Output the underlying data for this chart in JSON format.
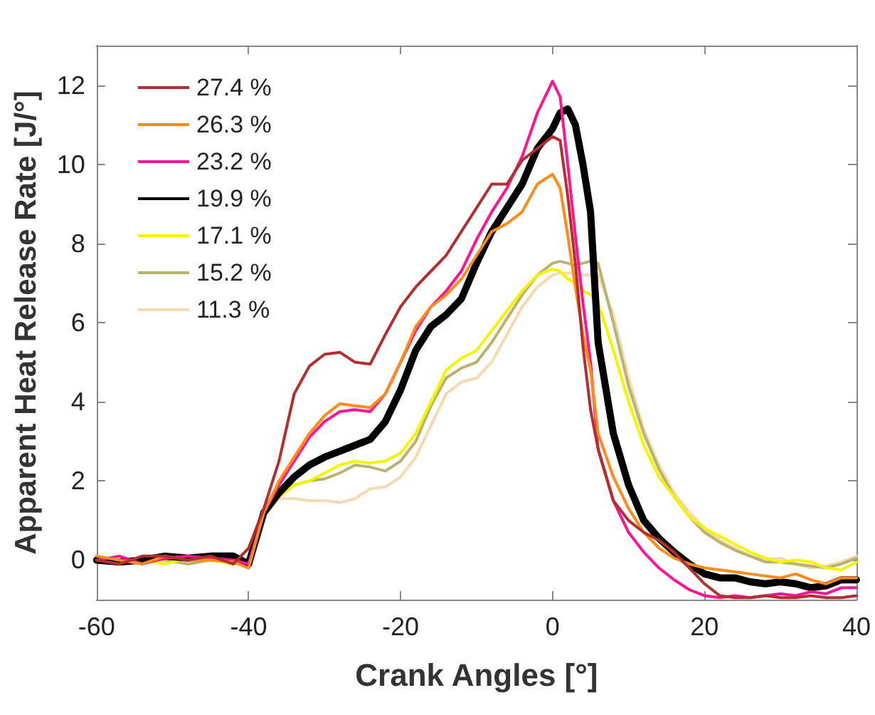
{
  "chart_data": {
    "type": "line",
    "xlabel": "Crank Angles [°]",
    "ylabel": "Apparent Heat Release Rate [J/°]",
    "x": [
      -60,
      -57,
      -54,
      -51,
      -48,
      -45,
      -42,
      -40,
      -38,
      -36,
      -34,
      -32,
      -30,
      -28,
      -26,
      -24,
      -22,
      -20,
      -18,
      -16,
      -14,
      -12,
      -10,
      -8,
      -6,
      -4,
      -2,
      0,
      1,
      2,
      3,
      4,
      5,
      6,
      8,
      10,
      12,
      14,
      16,
      18,
      20,
      22,
      24,
      26,
      28,
      30,
      32,
      34,
      36,
      38,
      40
    ],
    "series": [
      {
        "name": "27.4 %",
        "color": "#b22f2f",
        "values": [
          0,
          -0.1,
          0.1,
          0.1,
          0,
          0.1,
          -0.1,
          0.3,
          1.3,
          2.5,
          4.2,
          4.9,
          5.2,
          5.25,
          5.0,
          4.95,
          5.7,
          6.4,
          6.9,
          7.3,
          7.7,
          8.3,
          8.9,
          9.5,
          9.5,
          10.1,
          10.4,
          10.7,
          10.6,
          9.2,
          7.5,
          5.4,
          3.8,
          2.8,
          1.5,
          1.0,
          0.7,
          0.5,
          0.2,
          -0.2,
          -0.6,
          -0.9,
          -0.95,
          -0.95,
          -0.9,
          -0.95,
          -0.95,
          -0.9,
          -0.95,
          -0.95,
          -0.9
        ]
      },
      {
        "name": "26.3 %",
        "color": "#ff8c1a",
        "values": [
          0.1,
          0,
          -0.1,
          0.1,
          0,
          0,
          -0.05,
          -0.2,
          1.2,
          2.0,
          2.6,
          3.2,
          3.65,
          3.95,
          3.9,
          3.85,
          4.2,
          5.0,
          5.9,
          6.4,
          6.7,
          7.1,
          7.7,
          8.3,
          8.5,
          8.8,
          9.5,
          9.75,
          9.4,
          8.2,
          6.9,
          5.7,
          4.8,
          3.2,
          2.1,
          1.3,
          0.7,
          0.3,
          0.05,
          -0.1,
          -0.2,
          -0.25,
          -0.3,
          -0.35,
          -0.4,
          -0.45,
          -0.35,
          -0.5,
          -0.6,
          -0.45,
          -0.45
        ]
      },
      {
        "name": "23.2 %",
        "color": "#ff1493",
        "values": [
          0,
          0.1,
          -0.1,
          0.05,
          0.1,
          0.05,
          0,
          -0.1,
          1.2,
          1.9,
          2.5,
          3.1,
          3.5,
          3.75,
          3.8,
          3.75,
          4.2,
          5.0,
          5.8,
          6.4,
          6.8,
          7.3,
          8.1,
          8.8,
          9.4,
          10.2,
          11.3,
          12.1,
          11.7,
          10,
          8.2,
          6.5,
          5.0,
          2.8,
          1.5,
          0.7,
          0.2,
          -0.2,
          -0.5,
          -0.75,
          -0.9,
          -0.95,
          -0.9,
          -0.95,
          -0.9,
          -0.85,
          -0.9,
          -0.8,
          -0.85,
          -0.7,
          -0.7
        ]
      },
      {
        "name": "19.9 %",
        "color": "#000000",
        "values": [
          0,
          -0.05,
          0,
          0.1,
          0.05,
          0.1,
          0.1,
          -0.1,
          1.2,
          1.7,
          2.1,
          2.4,
          2.6,
          2.75,
          2.9,
          3.05,
          3.5,
          4.3,
          5.3,
          5.9,
          6.2,
          6.6,
          7.5,
          8.3,
          8.9,
          9.5,
          10.4,
          10.9,
          11.3,
          11.4,
          11.0,
          10.0,
          8.8,
          5.5,
          3.2,
          1.9,
          1.0,
          0.55,
          0.2,
          -0.1,
          -0.35,
          -0.45,
          -0.45,
          -0.55,
          -0.6,
          -0.55,
          -0.6,
          -0.7,
          -0.65,
          -0.5,
          -0.5
        ]
      },
      {
        "name": "17.1 %",
        "color": "#f5f500",
        "values": [
          0.05,
          0,
          0,
          -0.1,
          0.05,
          0,
          -0.1,
          0,
          1.1,
          1.6,
          1.9,
          2.0,
          2.2,
          2.4,
          2.5,
          2.45,
          2.5,
          2.7,
          3.2,
          4.0,
          4.8,
          5.1,
          5.3,
          5.8,
          6.3,
          6.8,
          7.2,
          7.35,
          7.3,
          7.1,
          7.0,
          6.8,
          6.7,
          6.5,
          5.3,
          4.0,
          2.9,
          2.1,
          1.6,
          1.1,
          0.8,
          0.6,
          0.4,
          0.2,
          0.05,
          -0.05,
          0,
          -0.05,
          -0.2,
          -0.25,
          -0.05
        ]
      },
      {
        "name": "15.2 %",
        "color": "#b8b46e",
        "values": [
          0,
          -0.1,
          0.05,
          0,
          -0.1,
          0,
          0,
          0,
          1.1,
          1.6,
          1.9,
          2.0,
          2.05,
          2.2,
          2.4,
          2.35,
          2.25,
          2.5,
          3.0,
          3.9,
          4.6,
          4.85,
          5.0,
          5.5,
          6.1,
          6.7,
          7.2,
          7.5,
          7.55,
          7.5,
          7.45,
          7.5,
          7.55,
          7.5,
          6.0,
          4.4,
          3.2,
          2.3,
          1.6,
          1.1,
          0.7,
          0.45,
          0.25,
          0.1,
          -0.05,
          -0.05,
          -0.1,
          -0.15,
          -0.2,
          -0.1,
          0.05
        ]
      },
      {
        "name": "11.3 %",
        "color": "#f5d9b0",
        "values": [
          0.05,
          0,
          -0.05,
          0,
          0.05,
          0,
          -0.05,
          0,
          1.1,
          1.55,
          1.55,
          1.5,
          1.5,
          1.45,
          1.55,
          1.8,
          1.85,
          2.1,
          2.6,
          3.4,
          4.2,
          4.5,
          4.6,
          5.0,
          5.7,
          6.4,
          6.9,
          7.2,
          7.25,
          7.25,
          7.25,
          7.2,
          7.2,
          7.2,
          6.2,
          4.6,
          3.3,
          2.4,
          1.7,
          1.2,
          0.8,
          0.5,
          0.3,
          0.1,
          0,
          0.05,
          -0.1,
          -0.2,
          -0.15,
          -0.05,
          0.1
        ]
      }
    ],
    "xlim": [
      -60,
      40
    ],
    "xticks": [
      -60,
      -40,
      -20,
      0,
      20,
      40
    ],
    "ylim": [
      -1,
      13
    ],
    "yticks": [
      0,
      2,
      4,
      6,
      8,
      10,
      12
    ],
    "grid": false,
    "legend": "top left",
    "marker": "none",
    "line_style": "solid"
  }
}
